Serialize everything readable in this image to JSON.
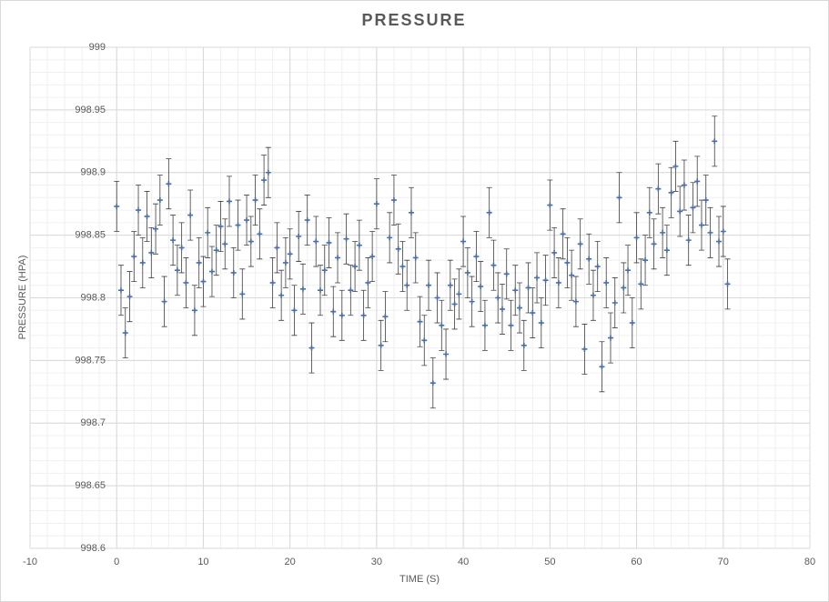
{
  "chart_data": {
    "type": "scatter",
    "title": "PRESSURE",
    "x_label": "TIME (S)",
    "y_label": "PRESSURE (HPA)",
    "xlim": [
      -10,
      80
    ],
    "xticks": [
      -10,
      0,
      10,
      20,
      30,
      40,
      50,
      60,
      70,
      80
    ],
    "ylim": [
      998.6,
      999
    ],
    "yticks": [
      998.6,
      998.65,
      998.7,
      998.75,
      998.8,
      998.85,
      998.9,
      998.95,
      999
    ],
    "grid": true,
    "minor_grid": true,
    "x": [
      0,
      0.5,
      1,
      1.5,
      2,
      2.5,
      3,
      3.5,
      4,
      4.5,
      5,
      5.5,
      6,
      6.5,
      7,
      7.5,
      8,
      8.5,
      9,
      9.5,
      10,
      10.5,
      11,
      11.5,
      12,
      12.5,
      13,
      13.5,
      14,
      14.5,
      15,
      15.5,
      16,
      16.5,
      17,
      17.5,
      18,
      18.5,
      19,
      19.5,
      20,
      20.5,
      21,
      21.5,
      22,
      22.5,
      23,
      23.5,
      24,
      24.5,
      25,
      25.5,
      26,
      26.5,
      27,
      27.5,
      28,
      28.5,
      29,
      29.5,
      30,
      30.5,
      31,
      31.5,
      32,
      32.5,
      33,
      33.5,
      34,
      34.5,
      35,
      35.5,
      36,
      36.5,
      37,
      37.5,
      38,
      38.5,
      39,
      39.5,
      40,
      40.5,
      41,
      41.5,
      42,
      42.5,
      43,
      43.5,
      44,
      44.5,
      45,
      45.5,
      46,
      46.5,
      47,
      47.5,
      48,
      48.5,
      49,
      49.5,
      50,
      50.5,
      51,
      51.5,
      52,
      52.5,
      53,
      53.5,
      54,
      54.5,
      55,
      55.5,
      56,
      56.5,
      57,
      57.5,
      58,
      58.5,
      59,
      59.5,
      60,
      60.5,
      61,
      61.5,
      62,
      62.5,
      63,
      63.5,
      64,
      64.5,
      65,
      65.5,
      66,
      66.5,
      67,
      67.5,
      68,
      68.5,
      69,
      69.5,
      70,
      70.5
    ],
    "series": [
      {
        "name": "Pressure",
        "color": "#4a6fa5",
        "error": 0.02,
        "values": [
          998.873,
          998.806,
          998.772,
          998.801,
          998.833,
          998.87,
          998.828,
          998.865,
          998.836,
          998.855,
          998.878,
          998.797,
          998.891,
          998.846,
          998.822,
          998.84,
          998.812,
          998.866,
          998.79,
          998.828,
          998.813,
          998.852,
          998.821,
          998.838,
          998.857,
          998.843,
          998.877,
          998.82,
          998.858,
          998.803,
          998.862,
          998.845,
          998.878,
          998.851,
          998.894,
          998.9,
          998.812,
          998.84,
          998.802,
          998.828,
          998.835,
          998.79,
          998.849,
          998.807,
          998.862,
          998.76,
          998.845,
          998.806,
          998.822,
          998.844,
          998.789,
          998.832,
          998.786,
          998.847,
          998.806,
          998.825,
          998.842,
          998.786,
          998.812,
          998.833,
          998.875,
          998.762,
          998.785,
          998.848,
          998.878,
          998.839,
          998.825,
          998.81,
          998.868,
          998.832,
          998.781,
          998.766,
          998.81,
          998.732,
          998.8,
          998.778,
          998.755,
          998.81,
          998.795,
          998.803,
          998.845,
          998.82,
          998.797,
          998.833,
          998.809,
          998.778,
          998.868,
          998.826,
          998.8,
          998.791,
          998.819,
          998.778,
          998.806,
          998.792,
          998.762,
          998.808,
          998.788,
          998.816,
          998.78,
          998.814,
          998.874,
          998.836,
          998.812,
          998.851,
          998.828,
          998.818,
          998.797,
          998.843,
          998.759,
          998.831,
          998.802,
          998.825,
          998.745,
          998.812,
          998.768,
          998.796,
          998.88,
          998.808,
          998.822,
          998.78,
          998.848,
          998.811,
          998.83,
          998.868,
          998.843,
          998.887,
          998.852,
          998.838,
          998.884,
          998.905,
          998.869,
          998.89,
          998.846,
          998.872,
          998.893,
          998.858,
          998.878,
          998.852,
          998.925,
          998.845,
          998.853,
          998.811
        ]
      }
    ]
  }
}
